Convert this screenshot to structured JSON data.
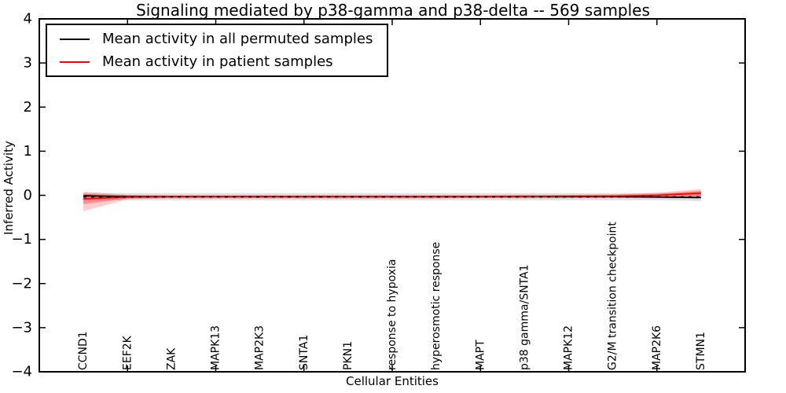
{
  "figure": {
    "background": "#ffffff",
    "frame_color": "#000000"
  },
  "legend": {
    "items": [
      {
        "label": "Mean activity in all permuted samples",
        "color": "#000000"
      },
      {
        "label": "Mean activity in patient samples",
        "color": "#ff0000"
      }
    ]
  },
  "chart_data": {
    "type": "line",
    "title": "Signaling mediated by p38-gamma and p38-delta -- 569 samples",
    "xlabel": "Cellular Entities",
    "ylabel": "Inferred Activity",
    "xlim": [
      -1,
      15
    ],
    "ylim": [
      -4,
      4
    ],
    "yticks": [
      -4,
      -3,
      -2,
      -1,
      0,
      1,
      2,
      3,
      4
    ],
    "yticks_right": [
      -3,
      -1,
      1,
      3
    ],
    "xtick_marks": [
      1,
      3,
      5,
      7,
      9,
      11,
      13
    ],
    "grid": false,
    "legend_position": "upper left",
    "categories": [
      "CCND1",
      "EEF2K",
      "ZAK",
      "MAPK13",
      "MAP2K3",
      "SNTA1",
      "PKN1",
      "response to hypoxia",
      "hyperosmotic response",
      "MAPT",
      "p38 gamma/SNTA1",
      "MAPK12",
      "G2/M transition checkpoint",
      "MAP2K6",
      "STMN1"
    ],
    "series": [
      {
        "name": "Mean activity in all permuted samples",
        "color": "#000000",
        "style": "solid",
        "values": [
          -0.01,
          -0.03,
          -0.03,
          -0.03,
          -0.03,
          -0.03,
          -0.03,
          -0.03,
          -0.03,
          -0.03,
          -0.03,
          -0.03,
          -0.03,
          -0.04,
          -0.05
        ]
      },
      {
        "name": "Mean activity in patient samples",
        "color": "#ff0000",
        "style": "solid",
        "values": [
          -0.08,
          -0.04,
          -0.03,
          -0.03,
          -0.03,
          -0.03,
          -0.03,
          -0.03,
          -0.03,
          -0.03,
          -0.03,
          -0.02,
          -0.02,
          0.0,
          0.05
        ]
      }
    ],
    "bands": [
      {
        "name": "permuted-confidence-band",
        "color": "rgba(0,0,0,0.13)",
        "upper": [
          0.06,
          0.05,
          0.05,
          0.05,
          0.05,
          0.05,
          0.05,
          0.05,
          0.05,
          0.05,
          0.05,
          0.05,
          0.05,
          0.05,
          0.06
        ],
        "lower": [
          -0.12,
          -0.11,
          -0.11,
          -0.11,
          -0.11,
          -0.11,
          -0.11,
          -0.11,
          -0.11,
          -0.11,
          -0.11,
          -0.11,
          -0.11,
          -0.11,
          -0.13
        ]
      },
      {
        "name": "patient-confidence-band-outer",
        "color": "rgba(255,0,0,0.20)",
        "upper": [
          0.08,
          0.01,
          0.0,
          0.0,
          0.0,
          0.0,
          0.0,
          0.0,
          0.0,
          0.0,
          0.01,
          0.01,
          0.02,
          0.06,
          0.14
        ],
        "lower": [
          -0.36,
          -0.09,
          -0.07,
          -0.07,
          -0.07,
          -0.07,
          -0.07,
          -0.07,
          -0.07,
          -0.06,
          -0.06,
          -0.06,
          -0.05,
          -0.04,
          -0.03
        ]
      },
      {
        "name": "patient-confidence-band-inner",
        "color": "rgba(255,0,0,0.30)",
        "upper": [
          0.03,
          0.0,
          -0.01,
          -0.01,
          -0.01,
          -0.01,
          -0.01,
          -0.01,
          -0.01,
          -0.01,
          0.0,
          0.0,
          0.01,
          0.03,
          0.1
        ],
        "lower": [
          -0.2,
          -0.07,
          -0.05,
          -0.05,
          -0.05,
          -0.05,
          -0.05,
          -0.05,
          -0.05,
          -0.05,
          -0.04,
          -0.04,
          -0.04,
          -0.03,
          -0.01
        ]
      }
    ],
    "dotted_overlay": {
      "color": "#000000",
      "value": -0.035,
      "dash": "4 6"
    }
  }
}
